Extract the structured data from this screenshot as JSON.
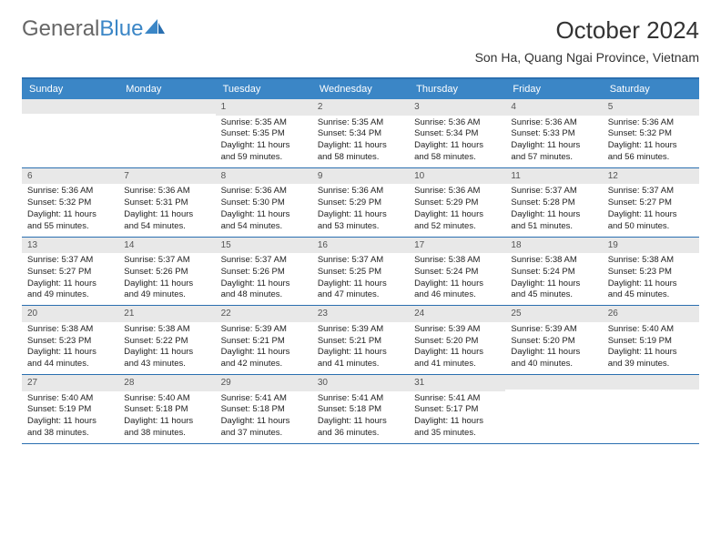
{
  "logo": {
    "text_a": "General",
    "text_b": "Blue"
  },
  "title": "October 2024",
  "location": "Son Ha, Quang Ngai Province, Vietnam",
  "colors": {
    "header_bg": "#3b86c6",
    "border": "#2a6fb0",
    "daynum_bg": "#e8e8e8",
    "text": "#222222",
    "logo_gray": "#666666",
    "logo_blue": "#3b86c6"
  },
  "day_headers": [
    "Sunday",
    "Monday",
    "Tuesday",
    "Wednesday",
    "Thursday",
    "Friday",
    "Saturday"
  ],
  "weeks": [
    [
      {
        "day": "",
        "lines": []
      },
      {
        "day": "",
        "lines": []
      },
      {
        "day": "1",
        "lines": [
          "Sunrise: 5:35 AM",
          "Sunset: 5:35 PM",
          "Daylight: 11 hours",
          "and 59 minutes."
        ]
      },
      {
        "day": "2",
        "lines": [
          "Sunrise: 5:35 AM",
          "Sunset: 5:34 PM",
          "Daylight: 11 hours",
          "and 58 minutes."
        ]
      },
      {
        "day": "3",
        "lines": [
          "Sunrise: 5:36 AM",
          "Sunset: 5:34 PM",
          "Daylight: 11 hours",
          "and 58 minutes."
        ]
      },
      {
        "day": "4",
        "lines": [
          "Sunrise: 5:36 AM",
          "Sunset: 5:33 PM",
          "Daylight: 11 hours",
          "and 57 minutes."
        ]
      },
      {
        "day": "5",
        "lines": [
          "Sunrise: 5:36 AM",
          "Sunset: 5:32 PM",
          "Daylight: 11 hours",
          "and 56 minutes."
        ]
      }
    ],
    [
      {
        "day": "6",
        "lines": [
          "Sunrise: 5:36 AM",
          "Sunset: 5:32 PM",
          "Daylight: 11 hours",
          "and 55 minutes."
        ]
      },
      {
        "day": "7",
        "lines": [
          "Sunrise: 5:36 AM",
          "Sunset: 5:31 PM",
          "Daylight: 11 hours",
          "and 54 minutes."
        ]
      },
      {
        "day": "8",
        "lines": [
          "Sunrise: 5:36 AM",
          "Sunset: 5:30 PM",
          "Daylight: 11 hours",
          "and 54 minutes."
        ]
      },
      {
        "day": "9",
        "lines": [
          "Sunrise: 5:36 AM",
          "Sunset: 5:29 PM",
          "Daylight: 11 hours",
          "and 53 minutes."
        ]
      },
      {
        "day": "10",
        "lines": [
          "Sunrise: 5:36 AM",
          "Sunset: 5:29 PM",
          "Daylight: 11 hours",
          "and 52 minutes."
        ]
      },
      {
        "day": "11",
        "lines": [
          "Sunrise: 5:37 AM",
          "Sunset: 5:28 PM",
          "Daylight: 11 hours",
          "and 51 minutes."
        ]
      },
      {
        "day": "12",
        "lines": [
          "Sunrise: 5:37 AM",
          "Sunset: 5:27 PM",
          "Daylight: 11 hours",
          "and 50 minutes."
        ]
      }
    ],
    [
      {
        "day": "13",
        "lines": [
          "Sunrise: 5:37 AM",
          "Sunset: 5:27 PM",
          "Daylight: 11 hours",
          "and 49 minutes."
        ]
      },
      {
        "day": "14",
        "lines": [
          "Sunrise: 5:37 AM",
          "Sunset: 5:26 PM",
          "Daylight: 11 hours",
          "and 49 minutes."
        ]
      },
      {
        "day": "15",
        "lines": [
          "Sunrise: 5:37 AM",
          "Sunset: 5:26 PM",
          "Daylight: 11 hours",
          "and 48 minutes."
        ]
      },
      {
        "day": "16",
        "lines": [
          "Sunrise: 5:37 AM",
          "Sunset: 5:25 PM",
          "Daylight: 11 hours",
          "and 47 minutes."
        ]
      },
      {
        "day": "17",
        "lines": [
          "Sunrise: 5:38 AM",
          "Sunset: 5:24 PM",
          "Daylight: 11 hours",
          "and 46 minutes."
        ]
      },
      {
        "day": "18",
        "lines": [
          "Sunrise: 5:38 AM",
          "Sunset: 5:24 PM",
          "Daylight: 11 hours",
          "and 45 minutes."
        ]
      },
      {
        "day": "19",
        "lines": [
          "Sunrise: 5:38 AM",
          "Sunset: 5:23 PM",
          "Daylight: 11 hours",
          "and 45 minutes."
        ]
      }
    ],
    [
      {
        "day": "20",
        "lines": [
          "Sunrise: 5:38 AM",
          "Sunset: 5:23 PM",
          "Daylight: 11 hours",
          "and 44 minutes."
        ]
      },
      {
        "day": "21",
        "lines": [
          "Sunrise: 5:38 AM",
          "Sunset: 5:22 PM",
          "Daylight: 11 hours",
          "and 43 minutes."
        ]
      },
      {
        "day": "22",
        "lines": [
          "Sunrise: 5:39 AM",
          "Sunset: 5:21 PM",
          "Daylight: 11 hours",
          "and 42 minutes."
        ]
      },
      {
        "day": "23",
        "lines": [
          "Sunrise: 5:39 AM",
          "Sunset: 5:21 PM",
          "Daylight: 11 hours",
          "and 41 minutes."
        ]
      },
      {
        "day": "24",
        "lines": [
          "Sunrise: 5:39 AM",
          "Sunset: 5:20 PM",
          "Daylight: 11 hours",
          "and 41 minutes."
        ]
      },
      {
        "day": "25",
        "lines": [
          "Sunrise: 5:39 AM",
          "Sunset: 5:20 PM",
          "Daylight: 11 hours",
          "and 40 minutes."
        ]
      },
      {
        "day": "26",
        "lines": [
          "Sunrise: 5:40 AM",
          "Sunset: 5:19 PM",
          "Daylight: 11 hours",
          "and 39 minutes."
        ]
      }
    ],
    [
      {
        "day": "27",
        "lines": [
          "Sunrise: 5:40 AM",
          "Sunset: 5:19 PM",
          "Daylight: 11 hours",
          "and 38 minutes."
        ]
      },
      {
        "day": "28",
        "lines": [
          "Sunrise: 5:40 AM",
          "Sunset: 5:18 PM",
          "Daylight: 11 hours",
          "and 38 minutes."
        ]
      },
      {
        "day": "29",
        "lines": [
          "Sunrise: 5:41 AM",
          "Sunset: 5:18 PM",
          "Daylight: 11 hours",
          "and 37 minutes."
        ]
      },
      {
        "day": "30",
        "lines": [
          "Sunrise: 5:41 AM",
          "Sunset: 5:18 PM",
          "Daylight: 11 hours",
          "and 36 minutes."
        ]
      },
      {
        "day": "31",
        "lines": [
          "Sunrise: 5:41 AM",
          "Sunset: 5:17 PM",
          "Daylight: 11 hours",
          "and 35 minutes."
        ]
      },
      {
        "day": "",
        "lines": []
      },
      {
        "day": "",
        "lines": []
      }
    ]
  ]
}
